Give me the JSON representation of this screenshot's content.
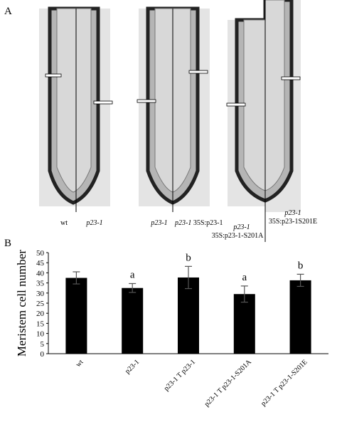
{
  "panel_a": {
    "label": "A",
    "captions": [
      {
        "text": "wt"
      },
      {
        "genotype": "p23-1"
      },
      {
        "genotype": "p23-1"
      },
      {
        "genotype": "p23-1",
        "construct": "35S:p23-1"
      },
      {
        "genotype": "p23-1",
        "construct": "35S:p23-1-S201A"
      },
      {
        "genotype": "p23-1",
        "construct": "35S:p23-1S201E"
      }
    ]
  },
  "panel_b": {
    "label": "B"
  },
  "chart_data": {
    "type": "bar",
    "y_label": "Meristem cell number",
    "categories": [
      "wt",
      "p23-1",
      "p23-1 T p23-1",
      "p23-1 T p23-1-S201A",
      "p23-1 T p23-1-S201E"
    ],
    "values": [
      37.5,
      32.5,
      37.7,
      29.5,
      36.3
    ],
    "errors": [
      3,
      2.2,
      5.5,
      4,
      3
    ],
    "significance": [
      null,
      "a",
      "b",
      "a",
      "b"
    ],
    "color": "#000000",
    "ylim": [
      0,
      50
    ],
    "yticks": [
      0,
      5,
      10,
      15,
      20,
      25,
      30,
      35,
      40,
      45,
      50
    ],
    "grid": false
  }
}
